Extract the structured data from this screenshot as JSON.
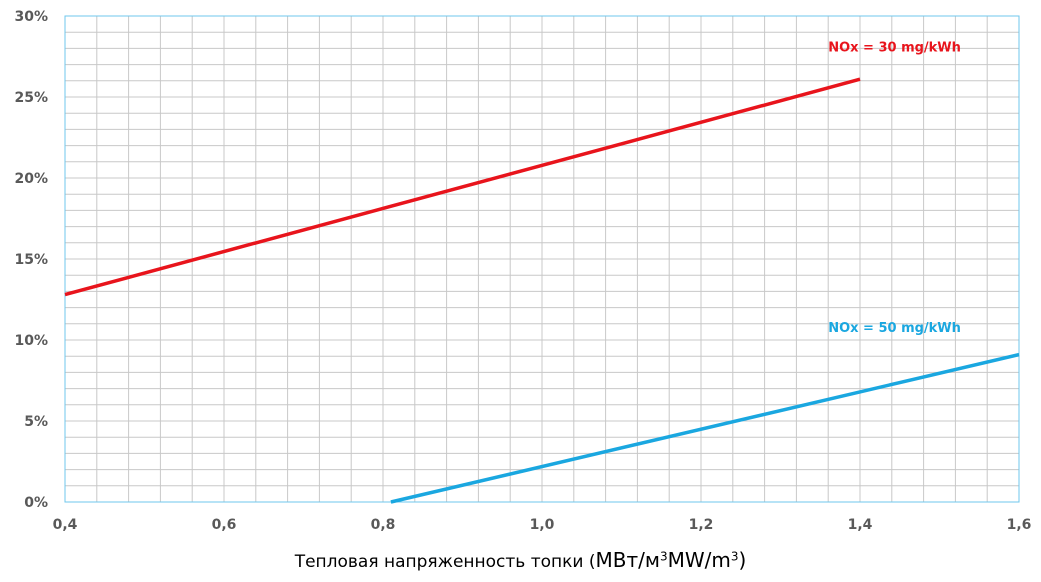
{
  "chart_data": {
    "type": "line",
    "x_axis": {
      "min": 0.4,
      "max": 1.6,
      "ticks": [
        "0,4",
        "0,6",
        "0,8",
        "1,0",
        "1,2",
        "1,4",
        "1,6"
      ],
      "tick_values": [
        0.4,
        0.6,
        0.8,
        1.0,
        1.2,
        1.4,
        1.6
      ],
      "minor_step": 0.04
    },
    "y_axis": {
      "min": 0,
      "max": 30,
      "ticks": [
        "0%",
        "5%",
        "10%",
        "15%",
        "20%",
        "25%",
        "30%"
      ],
      "tick_values": [
        0,
        5,
        10,
        15,
        20,
        25,
        30
      ],
      "minor_step": 1
    },
    "xlabel": {
      "prefix": "Тепловая напряженность топки  (",
      "unit_ru": "МВт/м",
      "unit_en": "MW/m",
      "exponent": "3",
      "suffix": ")"
    },
    "grid": true,
    "series": [
      {
        "name": "NOx = 30 mg/kWh",
        "color": "#e8141c",
        "x": [
          0.4,
          1.4
        ],
        "y": [
          12.8,
          26.1
        ]
      },
      {
        "name": "NOx = 50 mg/kWh",
        "color": "#1aa7e0",
        "x": [
          0.81,
          1.6
        ],
        "y": [
          0,
          9.1
        ]
      }
    ]
  },
  "colors": {
    "grid": "#c8c8c8",
    "frame": "#6fc7ec",
    "tick_text": "#595959"
  }
}
